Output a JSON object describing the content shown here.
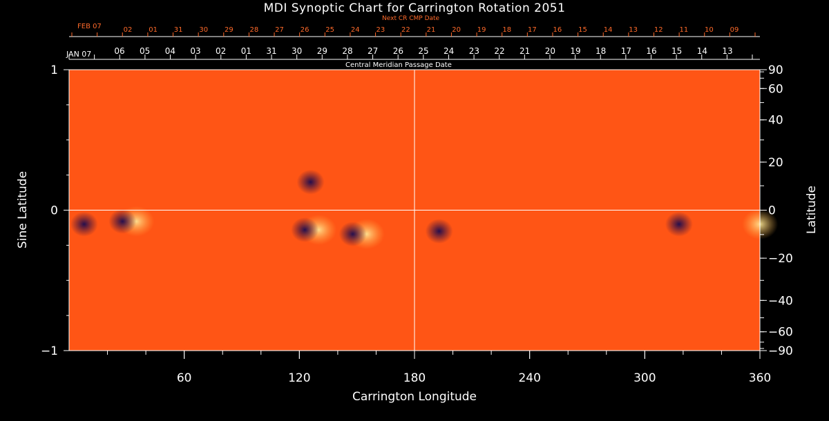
{
  "chart_data": {
    "type": "heatmap",
    "title": "MDI Synoptic Chart for Carrington Rotation 2051",
    "xlabel": "Carrington Longitude",
    "ylabel_left": "Sine Latitude",
    "ylabel_right": "Latitude",
    "xlim": [
      0,
      360
    ],
    "ylim": [
      -1,
      1
    ],
    "x_ticks": [
      60,
      120,
      180,
      240,
      300,
      360
    ],
    "y_ticks_left": [
      "1",
      "0",
      "−1"
    ],
    "y_ticks_left_values": [
      1,
      0,
      -1
    ],
    "latitude_ticks": [
      90,
      60,
      40,
      20,
      0,
      -20,
      -40,
      -60,
      -90
    ],
    "latitude_tick_labels": [
      "90",
      "60",
      "40",
      "20",
      "0",
      "−20",
      "−40",
      "−60",
      "−90"
    ],
    "cmp_axis_label": "Central Meridian Passage Date",
    "cmp_start_label": "JAN 07",
    "cmp_dates": [
      "06",
      "05",
      "04",
      "03",
      "02",
      "01",
      "31",
      "30",
      "29",
      "28",
      "27",
      "26",
      "25",
      "24",
      "23",
      "22",
      "21",
      "20",
      "19",
      "18",
      "17",
      "16",
      "15",
      "14",
      "13"
    ],
    "next_cr_label": "Next CR CMP Date",
    "next_cr_start_label": "FEB 07",
    "next_cr_dates": [
      "02",
      "01",
      "31",
      "30",
      "29",
      "28",
      "27",
      "26",
      "25",
      "24",
      "23",
      "22",
      "21",
      "20",
      "19",
      "18",
      "17",
      "16",
      "15",
      "14",
      "13",
      "12",
      "11",
      "10",
      "09"
    ],
    "active_regions": [
      {
        "lon": 10,
        "sinlat": -0.1,
        "polarity": "negative"
      },
      {
        "lon": 30,
        "sinlat": -0.08,
        "polarity": "mixed"
      },
      {
        "lon": 128,
        "sinlat": 0.2,
        "polarity": "negative"
      },
      {
        "lon": 125,
        "sinlat": -0.14,
        "polarity": "mixed"
      },
      {
        "lon": 150,
        "sinlat": -0.17,
        "polarity": "mixed"
      },
      {
        "lon": 195,
        "sinlat": -0.15,
        "polarity": "negative"
      },
      {
        "lon": 320,
        "sinlat": -0.1,
        "polarity": "negative"
      },
      {
        "lon": 355,
        "sinlat": -0.1,
        "polarity": "positive"
      }
    ],
    "colors": {
      "background_field": "#ff4a10",
      "negative": "#1a0a50",
      "positive": "#fff5b0",
      "axes": "#ffffff",
      "next_cr": "#ff6a2a"
    }
  }
}
